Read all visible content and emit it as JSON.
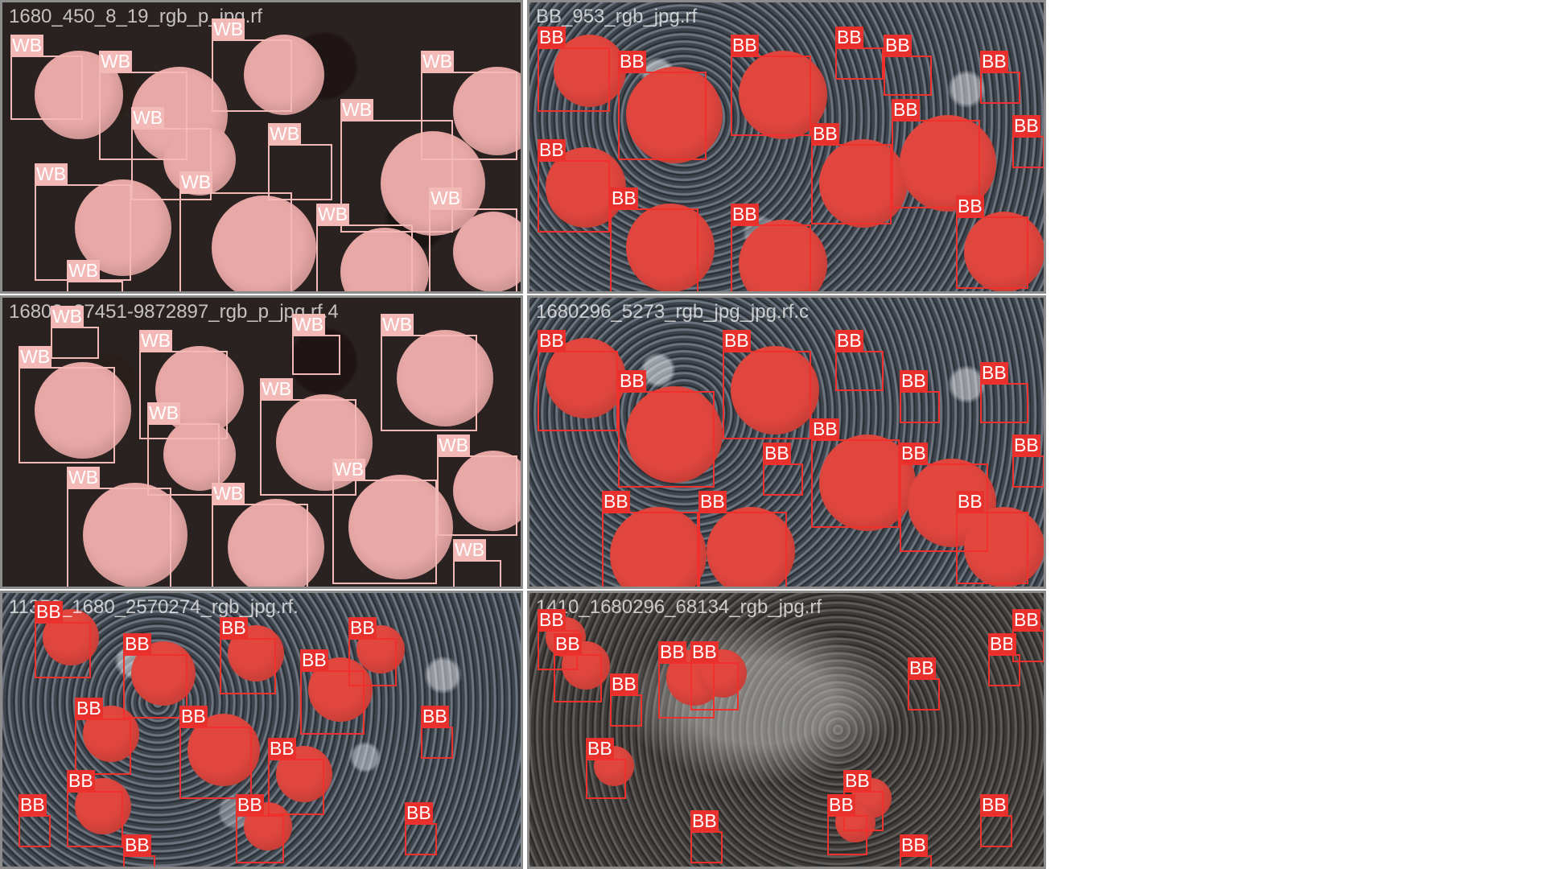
{
  "colors": {
    "wb_label": "#f3b9b6",
    "bb_label": "#e8312c",
    "tile_border": "#8c8c8c"
  },
  "tiles": [
    {
      "filename": "1680_450_8_19_rgb_p_jpg.rf",
      "variant": "pink",
      "class_label": "WB"
    },
    {
      "filename": "BB_953_rgb_jpg.rf",
      "variant": "red",
      "class_label": "BB"
    },
    {
      "filename": "16802_37451-9872897_rgb_p_jpg.rf.4",
      "variant": "pink",
      "class_label": "WB"
    },
    {
      "filename": "1680296_5273_rgb_jpg_jpg.rf.c",
      "variant": "red",
      "class_label": "BB"
    },
    {
      "filename": "11350_1680_2570274_rgb_jpg.rf.",
      "variant": "red",
      "class_label": "BB"
    },
    {
      "filename": "1410_1680296_68134_rgb_jpg.rf",
      "variant": "soil",
      "class_label": "BB"
    }
  ]
}
